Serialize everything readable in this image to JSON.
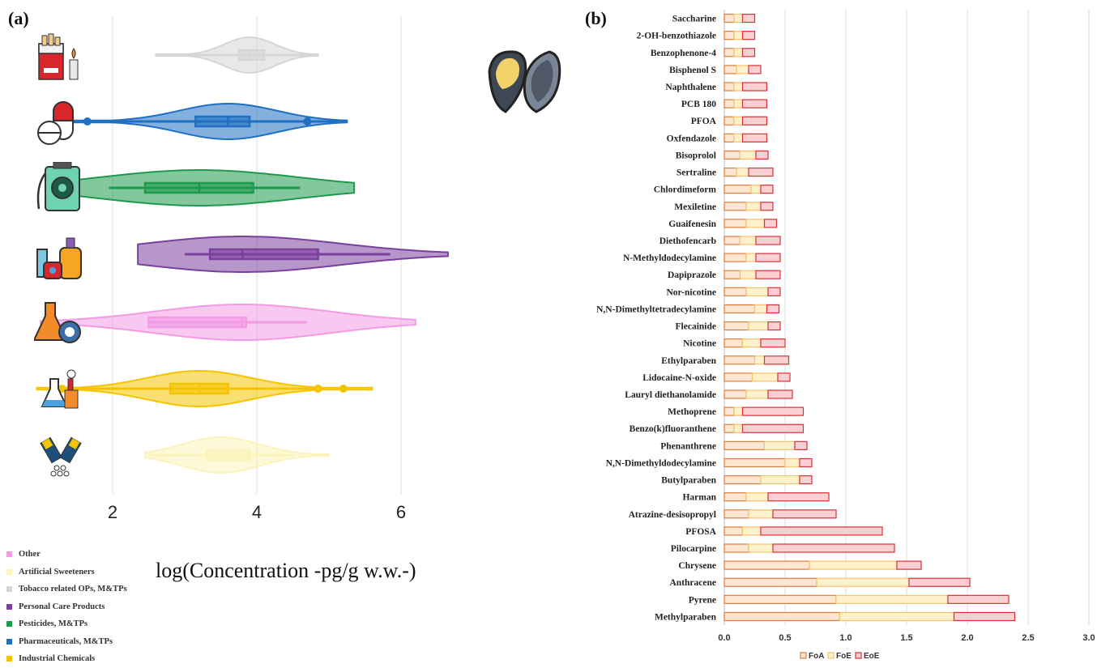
{
  "panels": {
    "a_label": "(a)",
    "b_label": "(b)"
  },
  "colors": {
    "Other": "#f29be4",
    "Artificial Sweeteners": "#fcf3b8",
    "Tobacco related OPs, M&TPs": "#d6d6d6",
    "Personal Care Products": "#7b3f9e",
    "Pesticides, M&TPs": "#1e9a4c",
    "Pharmaceuticals, M&TPs": "#1f6fc2",
    "Industrial Chemicals": "#f5c400",
    "FoA": "#e07b39",
    "FoE": "#f7c46c",
    "EoE": "#d9303a"
  },
  "icons": [
    "cigarettes-icon",
    "pill-capsule-icon",
    "pesticide-sprayer-icon",
    "cosmetics-icon",
    "flask-virus-icon",
    "factory-flask-icon",
    "sweetener-tubes-icon",
    "oyster-icon"
  ],
  "chart_data": [
    {
      "type": "violin",
      "xlabel": "log(Concentration -pg/g w.w.-)",
      "xticks": [
        2,
        4,
        6
      ],
      "xlim": [
        1.0,
        7.0
      ],
      "series": [
        {
          "name": "Tobacco related OPs, M&TPs",
          "min": 2.6,
          "q1": 3.75,
          "median": 3.9,
          "q3": 4.1,
          "max": 4.85,
          "outliers": []
        },
        {
          "name": "Pharmaceuticals, M&TPs",
          "min": 1.2,
          "q1": 3.15,
          "median": 3.6,
          "q3": 3.9,
          "max": 5.25,
          "outliers": [
            1.65,
            4.7
          ]
        },
        {
          "name": "Pesticides, M&TPs",
          "min": 1.95,
          "q1": 2.45,
          "median": 3.2,
          "q3": 3.95,
          "max": 4.6,
          "whisker_extent": [
            1.2,
            5.35
          ],
          "outliers": []
        },
        {
          "name": "Personal Care Products",
          "min": 3.0,
          "q1": 3.35,
          "median": 3.8,
          "q3": 4.85,
          "max": 5.85,
          "whisker_extent": [
            2.35,
            6.65
          ],
          "outliers": []
        },
        {
          "name": "Other",
          "min": 2.5,
          "q1": 2.5,
          "median": 3.8,
          "q3": 3.85,
          "max": 4.7,
          "whisker_extent": [
            1.0,
            6.2
          ],
          "outliers": []
        },
        {
          "name": "Industrial Chemicals",
          "min": 1.3,
          "q1": 2.8,
          "median": 3.2,
          "q3": 3.6,
          "max": 4.8,
          "whisker_extent": [
            0.95,
            5.6
          ],
          "outliers": [
            1.3,
            4.85,
            5.2
          ]
        },
        {
          "name": "Artificial Sweeteners",
          "min": 2.5,
          "q1": 3.3,
          "median": 3.5,
          "q3": 3.9,
          "max": 4.5,
          "whisker_extent": [
            2.45,
            5.0
          ],
          "outliers": []
        }
      ],
      "legend": [
        "Other",
        "Artificial Sweeteners",
        "Tobacco related OPs, M&TPs",
        "Personal Care Products",
        "Pesticides, M&TPs",
        "Pharmaceuticals, M&TPs",
        "Industrial Chemicals"
      ],
      "legend_placement": "bottom-left",
      "grid": true
    },
    {
      "type": "bar",
      "orientation": "horizontal",
      "stacked": true,
      "categories": [
        "Saccharine",
        "2-OH-benzothiazole",
        "Benzophenone-4",
        "Bisphenol S",
        "Naphthalene",
        "PCB 180",
        "PFOA",
        "Oxfendazole",
        "Bisoprolol",
        "Sertraline",
        "Chlordimeform",
        "Mexiletine",
        "Guaifenesin",
        "Diethofencarb",
        "N-Methyldodecylamine",
        "Dapiprazole",
        "Nor-nicotine",
        "N,N-Dimethyltetradecylamine",
        "Flecainide",
        "Nicotine",
        "Ethylparaben",
        "Lidocaine-N-oxide",
        "Lauryl diethanolamide",
        "Methoprene",
        "Benzo(k)fluoranthene",
        "Phenanthrene",
        "N,N-Dimethyldodecylamine",
        "Butylparaben",
        "Harman",
        "Atrazine-desisopropyl",
        "PFOSA",
        "Pilocarpine",
        "Chrysene",
        "Anthracene",
        "Pyrene",
        "Methylparaben"
      ],
      "series": [
        {
          "name": "FoA",
          "values": [
            0.08,
            0.08,
            0.08,
            0.1,
            0.08,
            0.08,
            0.08,
            0.08,
            0.13,
            0.1,
            0.22,
            0.18,
            0.18,
            0.13,
            0.18,
            0.13,
            0.18,
            0.25,
            0.2,
            0.15,
            0.25,
            0.23,
            0.18,
            0.08,
            0.08,
            0.33,
            0.5,
            0.3,
            0.18,
            0.2,
            0.15,
            0.2,
            0.7,
            0.76,
            0.92,
            0.95
          ]
        },
        {
          "name": "FoE",
          "values": [
            0.07,
            0.07,
            0.07,
            0.1,
            0.07,
            0.07,
            0.07,
            0.07,
            0.13,
            0.1,
            0.08,
            0.12,
            0.15,
            0.13,
            0.08,
            0.13,
            0.18,
            0.1,
            0.16,
            0.15,
            0.08,
            0.21,
            0.18,
            0.07,
            0.07,
            0.25,
            0.12,
            0.32,
            0.18,
            0.2,
            0.15,
            0.2,
            0.72,
            0.76,
            0.92,
            0.94
          ]
        },
        {
          "name": "EoE",
          "values": [
            0.1,
            0.1,
            0.1,
            0.1,
            0.2,
            0.2,
            0.2,
            0.2,
            0.1,
            0.2,
            0.1,
            0.1,
            0.1,
            0.2,
            0.2,
            0.2,
            0.1,
            0.1,
            0.1,
            0.2,
            0.2,
            0.1,
            0.2,
            0.5,
            0.5,
            0.1,
            0.1,
            0.1,
            0.5,
            0.52,
            1.0,
            1.0,
            0.2,
            0.5,
            0.5,
            0.5
          ]
        }
      ],
      "xticks": [
        "0.0",
        "0.5",
        "1.0",
        "1.5",
        "2.0",
        "2.5",
        "3.0"
      ],
      "xlim": [
        0,
        3.0
      ],
      "legend": [
        "FoA",
        "FoE",
        "EoE"
      ],
      "legend_placement": "bottom",
      "grid": true
    }
  ]
}
